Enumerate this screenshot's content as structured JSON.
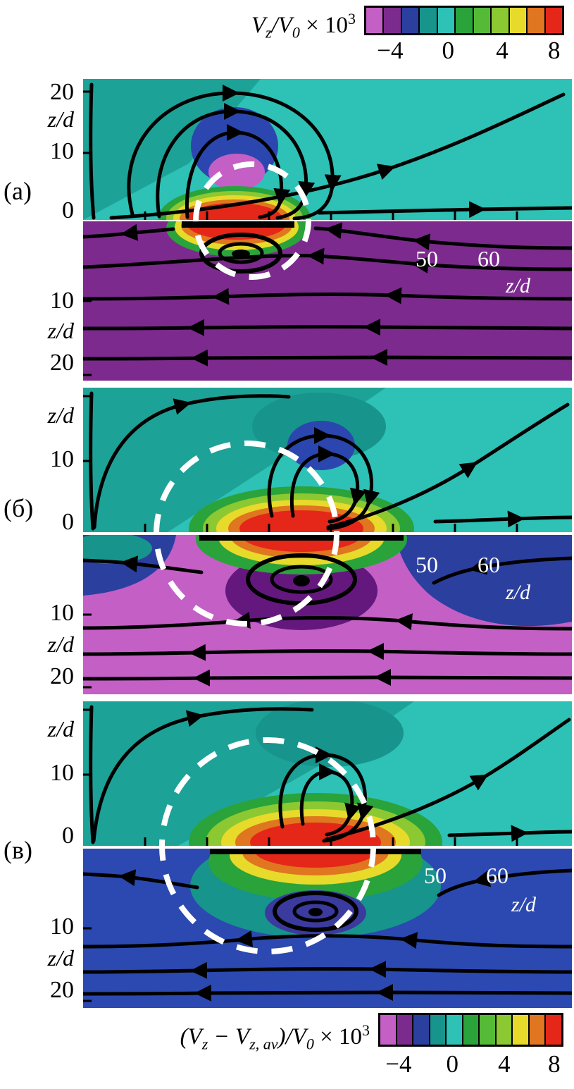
{
  "colormap": [
    "#c45fc5",
    "#7b2a8d",
    "#2b3f9f",
    "#17948b",
    "#2ec1b6",
    "#2aa33b",
    "#55bb37",
    "#8cc832",
    "#e7da2b",
    "#e0761f",
    "#e42718"
  ],
  "colorbar_top": {
    "label_parts": {
      "v1": "V",
      "s1": "z",
      "v2": "/V",
      "s2": "0",
      "rest": " × 10",
      "sup": "3"
    },
    "ticks": [
      "−4",
      "0",
      "4",
      "8"
    ]
  },
  "colorbar_bottom": {
    "label_parts": {
      "v1": "(V",
      "s1": "z",
      "v2": " − V",
      "s2": "z, av",
      "v3": ")/V",
      "s3": "0",
      "rest": " × 10",
      "sup": "3"
    },
    "ticks": [
      "−4",
      "0",
      "4",
      "8"
    ]
  },
  "panels": [
    {
      "letter": "(а)",
      "upper": {
        "yticks": [
          "20",
          "10",
          "0"
        ],
        "ylabel": "z/d"
      },
      "lower": {
        "yticks": [
          "10",
          "20"
        ],
        "ylabel": "z/d",
        "xticks": [
          "50",
          "60"
        ],
        "xlabel": "z/d"
      }
    },
    {
      "letter": "(б)",
      "upper": {
        "yticks": [
          "10",
          "0"
        ],
        "ylabel": "z/d"
      },
      "lower": {
        "yticks": [
          "10",
          "20"
        ],
        "ylabel": "z/d",
        "xticks": [
          "50",
          "60"
        ],
        "xlabel": "z/d"
      }
    },
    {
      "letter": "(в)",
      "upper": {
        "yticks": [
          "10",
          "0"
        ],
        "ylabel": "z/d"
      },
      "lower": {
        "yticks": [
          "10",
          "20"
        ],
        "ylabel": "z/d",
        "xticks": [
          "50",
          "60"
        ],
        "xlabel": "z/d"
      }
    }
  ],
  "chart_data": {
    "type": "heatmap",
    "subtype": "contour maps with overlaid streamlines, three panel pairs",
    "panel_labels": [
      "(а)",
      "(б)",
      "(в)"
    ],
    "colorbar": {
      "tick_values": [
        -4,
        0,
        4,
        8
      ],
      "scale_factor": "×10³",
      "upper_quantity": "Vz/V0",
      "lower_quantity": "(Vz − Vz,av)/V0",
      "colors_low_to_high": [
        "#c45fc5",
        "#7b2a8d",
        "#2b3f9f",
        "#17948b",
        "#2ec1b6",
        "#2aa33b",
        "#55bb37",
        "#8cc832",
        "#e7da2b",
        "#e0761f",
        "#e42718"
      ]
    },
    "axes": {
      "vertical_label": "z/d",
      "vertical_tick_values": [
        0,
        10,
        20
      ],
      "vertical_range": [
        0,
        20
      ],
      "horizontal_label": "z/d",
      "horizontal_tick_values": [
        50,
        60
      ]
    },
    "panels": [
      {
        "label": "(а)",
        "upper_map": "cyan (≈0) background; negative blue/magenta lobe at z/d≈8–14; positive red core (≈8×10⁻³) ringed by orange/yellow/green at the interface; recirculating vortex streamlines at left and outflow streamline to upper right",
        "lower_map": "uniform purple (negative) background; leftward horizontal streamlines; red core and small vortex just below the interface",
        "dashed_circle": {
          "center_xd": 22,
          "radius_zd": 8
        }
      },
      {
        "label": "(б)",
        "upper_map": "cyan background; blue lobe at z/d≈10 inside dark-teal region; concentric red/orange/yellow/green positive core at the interface; paired vortex loops",
        "lower_map": "magenta background with blue lobes at upper corners; red core below the interface surrounded by dark-purple ring with vortex loop",
        "dashed_circle": {
          "center_xd": 22,
          "radius_zd": 13
        }
      },
      {
        "label": "(в)",
        "upper_map": "cyan background; dark-teal lobe at top; larger concentric positive core at the interface; paired vortex loops",
        "lower_map": "blue background; concentric red/orange/yellow core inside dark-teal ring below the interface with vortex loop",
        "dashed_circle": {
          "center_xd": 25,
          "radius_zd": 15
        }
      }
    ]
  }
}
